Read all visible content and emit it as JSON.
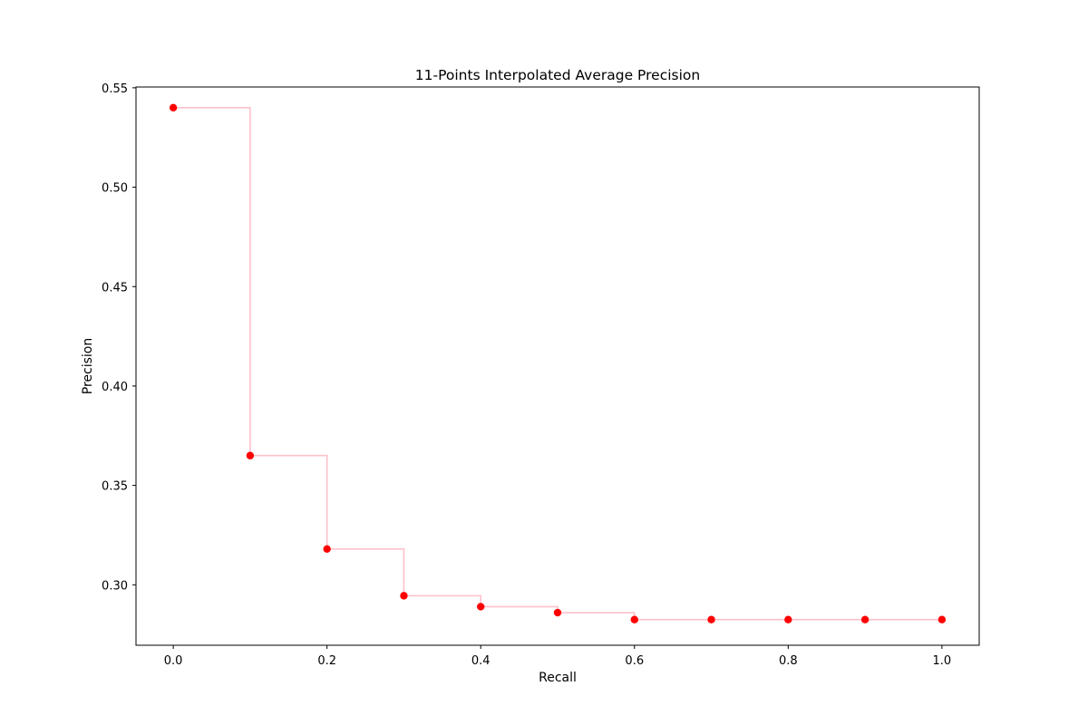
{
  "chart_data": {
    "type": "scatter",
    "title": "11-Points Interpolated Average Precision",
    "xlabel": "Recall",
    "ylabel": "Precision",
    "x": [
      0.0,
      0.1,
      0.2,
      0.3,
      0.4,
      0.5,
      0.6,
      0.7,
      0.8,
      0.9,
      1.0
    ],
    "y": [
      0.54,
      0.365,
      0.318,
      0.2945,
      0.289,
      0.286,
      0.2825,
      0.2825,
      0.2825,
      0.2825,
      0.2825
    ],
    "xlim": [
      -0.0485,
      1.0485
    ],
    "ylim": [
      0.2696,
      0.5504
    ],
    "xticks": [
      "0.0",
      "0.2",
      "0.4",
      "0.6",
      "0.8",
      "1.0"
    ],
    "yticks": [
      "0.30",
      "0.35",
      "0.40",
      "0.45",
      "0.50",
      "0.55"
    ],
    "grid": false,
    "step_line": true,
    "marker_color": "#ff0000",
    "line_color": "#ffc0cb"
  }
}
